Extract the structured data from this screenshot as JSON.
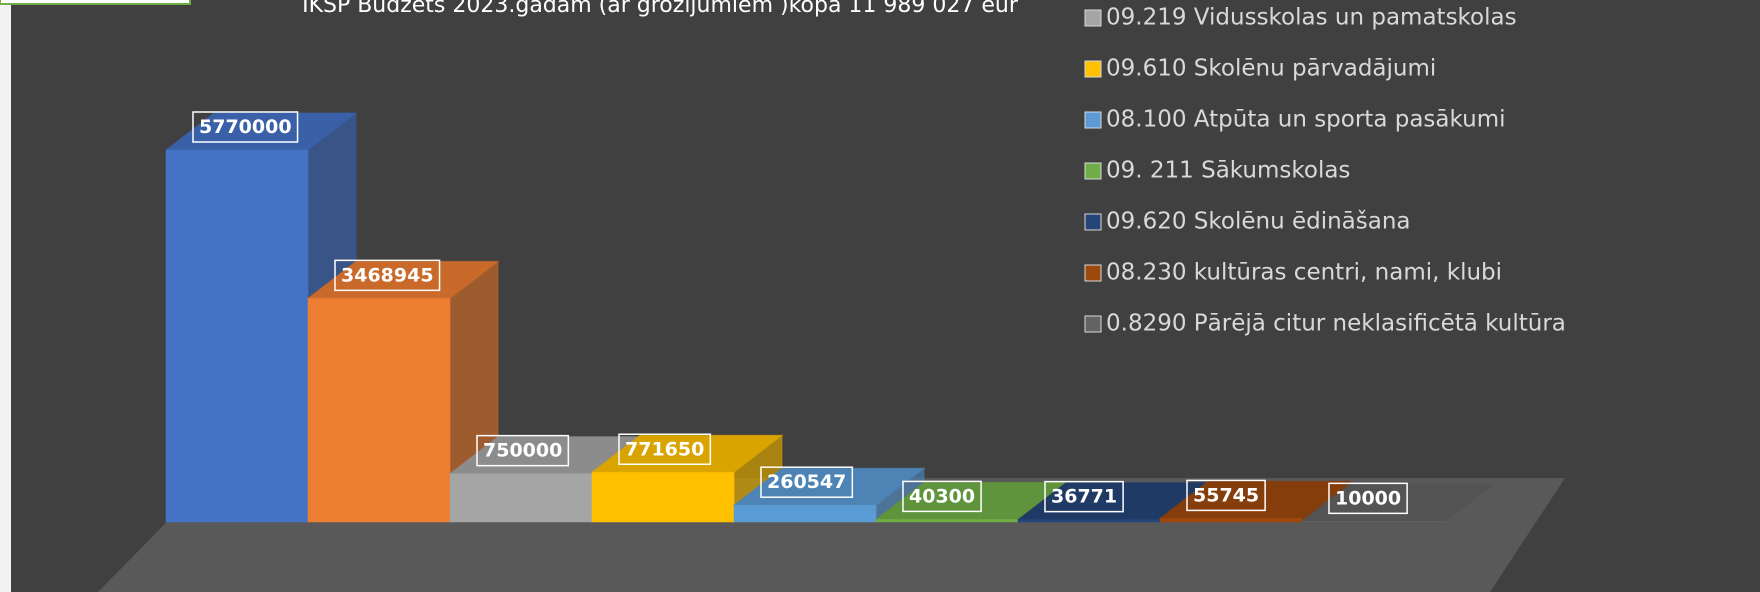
{
  "chart_data": {
    "type": "bar3d",
    "title": "IKSP Budžets 2023.gadam (ar grozījumiem )kopā 11 989 027 eur",
    "categories": [
      null,
      null,
      "09.219 Vidusskolas un pamatskolas",
      "09.610 Skolēnu pārvadājumi",
      "08.100 Atpūta un sporta pasākumi",
      "09. 211 Sākumskolas",
      "09.620 Skolēnu ēdināšana",
      "08.230 kultūras centri, nami, klubi",
      "0.8290 Pārējā citur neklasificētā kultūra"
    ],
    "values": [
      5770000,
      3468945,
      750000,
      771650,
      260547,
      40300,
      36771,
      55745,
      10000
    ],
    "colors": [
      "#4472c4",
      "#ed7d31",
      "#a5a5a5",
      "#ffc000",
      "#5b9bd5",
      "#70ad47",
      "#264478",
      "#9e480e",
      "#636363"
    ]
  }
}
